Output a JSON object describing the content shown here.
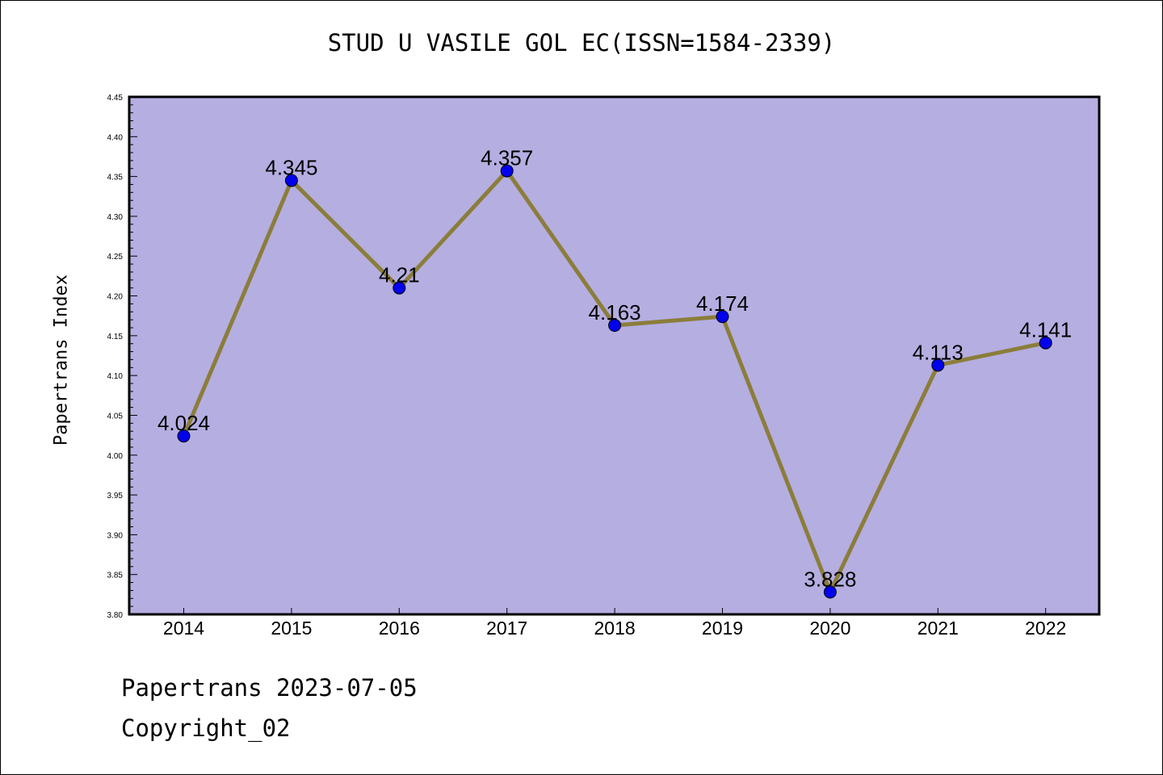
{
  "chart_data": {
    "type": "line",
    "title": "STUD U VASILE GOL EC(ISSN=1584-2339)",
    "xlabel": "",
    "ylabel": "Papertrans Index",
    "categories": [
      "2014",
      "2015",
      "2016",
      "2017",
      "2018",
      "2019",
      "2020",
      "2021",
      "2022"
    ],
    "series": [
      {
        "values": [
          4.024,
          4.345,
          4.21,
          4.357,
          4.163,
          4.174,
          3.828,
          4.113,
          4.141
        ],
        "labels": [
          "4.024",
          "4.345",
          "4.21",
          "4.357",
          "4.163",
          "4.174",
          "3.828",
          "4.113",
          "4.141"
        ]
      }
    ],
    "ylim": [
      3.8,
      4.45
    ],
    "yticks": [
      "3.80",
      "3.85",
      "3.90",
      "3.95",
      "4.00",
      "4.05",
      "4.10",
      "4.15",
      "4.20",
      "4.25",
      "4.30",
      "4.35",
      "4.40",
      "4.45"
    ],
    "grid": false,
    "colors": {
      "plot_background": "#b5aee1",
      "line": "#8b7d3a",
      "marker": "#0000ee"
    }
  },
  "footer": {
    "line1": "Papertrans 2023-07-05",
    "line2": "Copyright_02"
  }
}
